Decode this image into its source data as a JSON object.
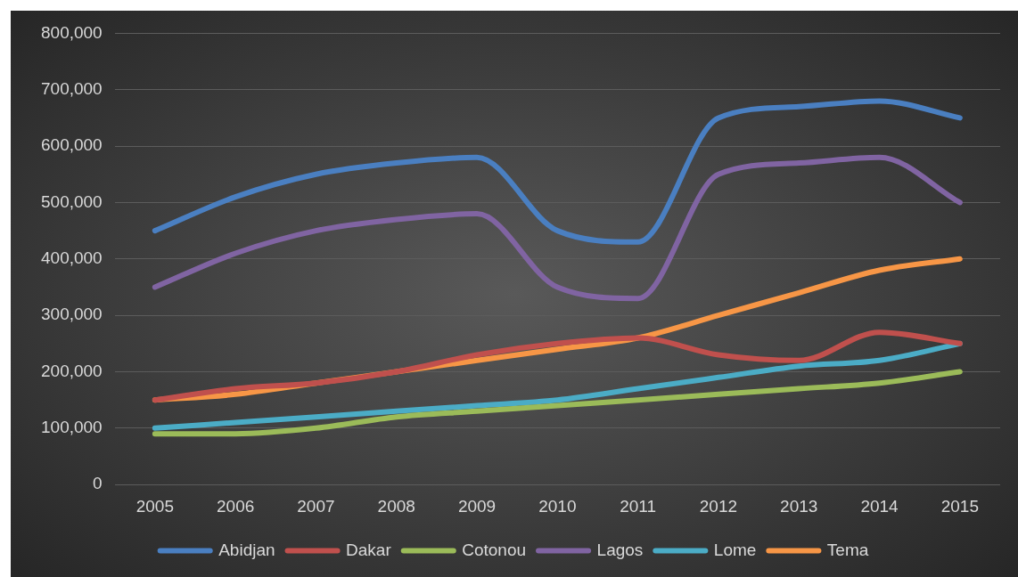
{
  "chart_data": {
    "type": "line",
    "categories": [
      "2005",
      "2006",
      "2007",
      "2008",
      "2009",
      "2010",
      "2011",
      "2012",
      "2013",
      "2014",
      "2015"
    ],
    "series": [
      {
        "name": "Abidjan",
        "color": "#4a7fc1",
        "values": [
          450000,
          510000,
          550000,
          570000,
          580000,
          450000,
          430000,
          650000,
          670000,
          680000,
          650000
        ]
      },
      {
        "name": "Dakar",
        "color": "#c0504d",
        "values": [
          150000,
          170000,
          180000,
          200000,
          230000,
          250000,
          260000,
          230000,
          220000,
          270000,
          250000
        ]
      },
      {
        "name": "Cotonou",
        "color": "#9bbb59",
        "values": [
          90000,
          90000,
          100000,
          120000,
          130000,
          140000,
          150000,
          160000,
          170000,
          180000,
          200000
        ]
      },
      {
        "name": "Lagos",
        "color": "#8064a2",
        "values": [
          350000,
          410000,
          450000,
          470000,
          480000,
          350000,
          330000,
          550000,
          570000,
          580000,
          500000
        ]
      },
      {
        "name": "Lome",
        "color": "#4bacc6",
        "values": [
          100000,
          110000,
          120000,
          130000,
          140000,
          150000,
          170000,
          190000,
          210000,
          220000,
          250000
        ]
      },
      {
        "name": "Tema",
        "color": "#f79646",
        "values": [
          150000,
          160000,
          180000,
          200000,
          220000,
          240000,
          260000,
          300000,
          340000,
          380000,
          400000
        ]
      }
    ],
    "ylim": [
      0,
      800000
    ],
    "yticks": [
      0,
      {
        "value": 100000,
        "label": "100,000"
      },
      {
        "value": 200000,
        "label": "200,000"
      },
      {
        "value": 300000,
        "label": "300,000"
      },
      {
        "value": 400000,
        "label": "400,000"
      },
      {
        "value": 500000,
        "label": "500,000"
      },
      {
        "value": 600000,
        "label": "600,000"
      },
      {
        "value": 700000,
        "label": "700,000"
      },
      {
        "value": 800000,
        "label": "800,000"
      }
    ],
    "grid": "y",
    "legend": "bottom",
    "marker": "none",
    "line_style": "solid"
  }
}
